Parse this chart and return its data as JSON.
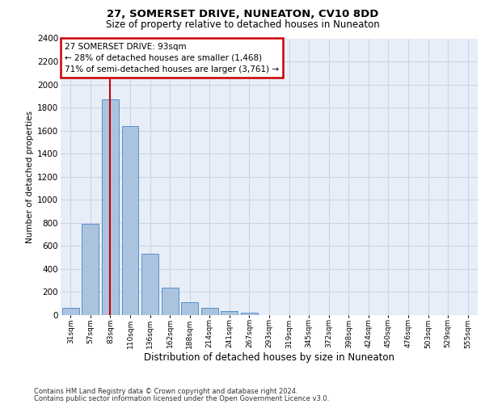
{
  "title1": "27, SOMERSET DRIVE, NUNEATON, CV10 8DD",
  "title2": "Size of property relative to detached houses in Nuneaton",
  "xlabel": "Distribution of detached houses by size in Nuneaton",
  "ylabel": "Number of detached properties",
  "bar_labels": [
    "31sqm",
    "57sqm",
    "83sqm",
    "110sqm",
    "136sqm",
    "162sqm",
    "188sqm",
    "214sqm",
    "241sqm",
    "267sqm",
    "293sqm",
    "319sqm",
    "345sqm",
    "372sqm",
    "398sqm",
    "424sqm",
    "450sqm",
    "476sqm",
    "503sqm",
    "529sqm",
    "555sqm"
  ],
  "bar_values": [
    60,
    790,
    1870,
    1640,
    530,
    240,
    110,
    60,
    35,
    20,
    0,
    0,
    0,
    0,
    0,
    0,
    0,
    0,
    0,
    0,
    0
  ],
  "bar_color": "#aac4e0",
  "bar_edge_color": "#5b8fc7",
  "vline_x": 2,
  "vline_color": "#cc0000",
  "annotation_line1": "27 SOMERSET DRIVE: 93sqm",
  "annotation_line2": "← 28% of detached houses are smaller (1,468)",
  "annotation_line3": "71% of semi-detached houses are larger (3,761) →",
  "annotation_box_color": "#cc0000",
  "annotation_bg": "#ffffff",
  "ylim_max": 2400,
  "yticks": [
    0,
    200,
    400,
    600,
    800,
    1000,
    1200,
    1400,
    1600,
    1800,
    2000,
    2200,
    2400
  ],
  "grid_color": "#c8d4e8",
  "bg_color": "#e8eef8",
  "footer1": "Contains HM Land Registry data © Crown copyright and database right 2024.",
  "footer2": "Contains public sector information licensed under the Open Government Licence v3.0."
}
